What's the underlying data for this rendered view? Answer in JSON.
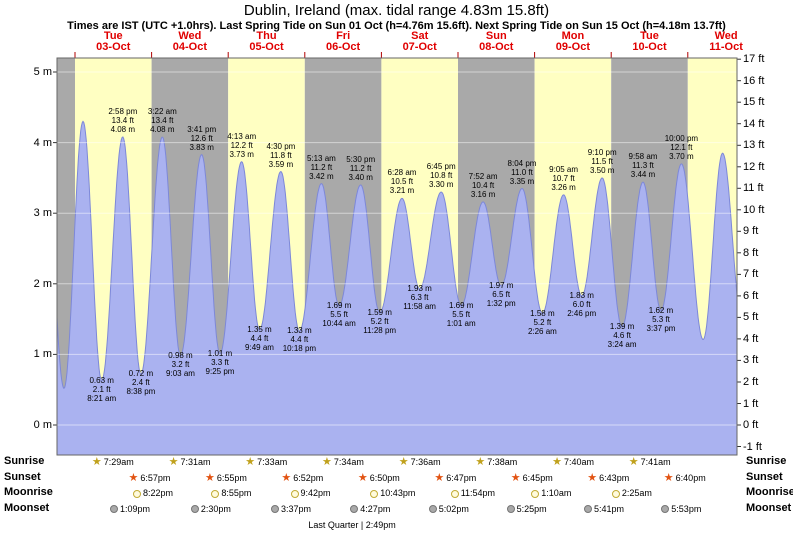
{
  "header": {
    "title": "Dublin, Ireland (max. tidal range 4.83m 15.8ft)",
    "subtitle": "Times are IST (UTC +1.0hrs). Last Spring Tide on Sun 01 Oct (h=4.76m 15.6ft). Next Spring Tide on Sun 15 Oct (h=4.18m 13.7ft)"
  },
  "chart_data": {
    "type": "area",
    "title": "Dublin, Ireland (max. tidal range 4.83m 15.8ft)",
    "x_axis": {
      "days": [
        {
          "name": "Tue",
          "date": "03-Oct"
        },
        {
          "name": "Wed",
          "date": "04-Oct"
        },
        {
          "name": "Thu",
          "date": "05-Oct"
        },
        {
          "name": "Fri",
          "date": "06-Oct"
        },
        {
          "name": "Sat",
          "date": "07-Oct"
        },
        {
          "name": "Sun",
          "date": "08-Oct"
        },
        {
          "name": "Mon",
          "date": "09-Oct"
        },
        {
          "name": "Tue",
          "date": "10-Oct"
        },
        {
          "name": "Wed",
          "date": "11-Oct"
        }
      ]
    },
    "y_axis_left": {
      "unit": "m",
      "labels": [
        "0 m",
        "1 m",
        "2 m",
        "3 m",
        "4 m",
        "5 m"
      ]
    },
    "y_axis_right": {
      "unit": "ft",
      "labels": [
        "-1 ft",
        "0 ft",
        "1 ft",
        "2 ft",
        "3 ft",
        "4 ft",
        "5 ft",
        "6 ft",
        "7 ft",
        "8 ft",
        "9 ft",
        "10 ft",
        "11 ft",
        "12 ft",
        "13 ft",
        "14 ft",
        "15 ft",
        "16 ft",
        "17 ft"
      ]
    },
    "ylim_m": [
      -0.42,
      5.2
    ],
    "grid": "horizontal-meter-lines",
    "tide_events": [
      {
        "day": -1,
        "time": "14:12",
        "type": "high",
        "height_m": 4.28,
        "annotated": false
      },
      {
        "day": -1,
        "time": "20:33",
        "type": "low",
        "height_m": 0.52,
        "annotated": false
      },
      {
        "day": 0,
        "time": "02:31",
        "type": "high",
        "height_m": 4.3,
        "annotated": false
      },
      {
        "day": 0,
        "time": "08:21",
        "type": "low",
        "height_m": 0.63,
        "height_ft": 2.1,
        "time_label": "8:21 am",
        "annotated": true
      },
      {
        "day": 0,
        "time": "14:58",
        "type": "high",
        "height_m": 4.08,
        "height_ft": 13.4,
        "time_label": "2:58 pm",
        "annotated": true
      },
      {
        "day": 0,
        "time": "20:38",
        "type": "low",
        "height_m": 0.72,
        "height_ft": 2.4,
        "time_label": "8:38 pm",
        "annotated": true
      },
      {
        "day": 1,
        "time": "03:22",
        "type": "high",
        "height_m": 4.08,
        "height_ft": 13.4,
        "time_label": "3:22 am",
        "annotated": true
      },
      {
        "day": 1,
        "time": "09:03",
        "type": "low",
        "height_m": 0.98,
        "height_ft": 3.2,
        "time_label": "9:03 am",
        "annotated": true
      },
      {
        "day": 1,
        "time": "15:41",
        "type": "high",
        "height_m": 3.83,
        "height_ft": 12.6,
        "time_label": "3:41 pm",
        "annotated": true
      },
      {
        "day": 1,
        "time": "21:25",
        "type": "low",
        "height_m": 1.01,
        "height_ft": 3.3,
        "time_label": "9:25 pm",
        "annotated": true
      },
      {
        "day": 2,
        "time": "04:13",
        "type": "high",
        "height_m": 3.73,
        "height_ft": 12.2,
        "time_label": "4:13 am",
        "annotated": true
      },
      {
        "day": 2,
        "time": "09:49",
        "type": "low",
        "height_m": 1.35,
        "height_ft": 4.4,
        "time_label": "9:49 am",
        "annotated": true
      },
      {
        "day": 2,
        "time": "16:30",
        "type": "high",
        "height_m": 3.59,
        "height_ft": 11.8,
        "time_label": "4:30 pm",
        "annotated": true
      },
      {
        "day": 2,
        "time": "22:18",
        "type": "low",
        "height_m": 1.33,
        "height_ft": 4.4,
        "time_label": "10:18 pm",
        "annotated": true
      },
      {
        "day": 3,
        "time": "05:13",
        "type": "high",
        "height_m": 3.42,
        "height_ft": 11.2,
        "time_label": "5:13 am",
        "annotated": true
      },
      {
        "day": 3,
        "time": "10:44",
        "type": "low",
        "height_m": 1.69,
        "height_ft": 5.5,
        "time_label": "10:44 am",
        "annotated": true
      },
      {
        "day": 3,
        "time": "17:30",
        "type": "high",
        "height_m": 3.4,
        "height_ft": 11.2,
        "time_label": "5:30 pm",
        "annotated": true
      },
      {
        "day": 3,
        "time": "23:28",
        "type": "low",
        "height_m": 1.59,
        "height_ft": 5.2,
        "time_label": "11:28 pm",
        "annotated": true
      },
      {
        "day": 4,
        "time": "06:28",
        "type": "high",
        "height_m": 3.21,
        "height_ft": 10.5,
        "time_label": "6:28 am",
        "annotated": true
      },
      {
        "day": 4,
        "time": "11:58",
        "type": "low",
        "height_m": 1.93,
        "height_ft": 6.3,
        "time_label": "11:58 am",
        "annotated": true
      },
      {
        "day": 4,
        "time": "18:45",
        "type": "high",
        "height_m": 3.3,
        "height_ft": 10.8,
        "time_label": "6:45 pm",
        "annotated": true
      },
      {
        "day": 5,
        "time": "01:01",
        "type": "low",
        "height_m": 1.69,
        "height_ft": 5.5,
        "time_label": "1:01 am",
        "annotated": true
      },
      {
        "day": 5,
        "time": "07:52",
        "type": "high",
        "height_m": 3.16,
        "height_ft": 10.4,
        "time_label": "7:52 am",
        "annotated": true
      },
      {
        "day": 5,
        "time": "13:32",
        "type": "low",
        "height_m": 1.97,
        "height_ft": 6.5,
        "time_label": "1:32 pm",
        "annotated": true
      },
      {
        "day": 5,
        "time": "20:04",
        "type": "high",
        "height_m": 3.35,
        "height_ft": 11.0,
        "time_label": "8:04 pm",
        "annotated": true
      },
      {
        "day": 6,
        "time": "02:26",
        "type": "low",
        "height_m": 1.58,
        "height_ft": 5.2,
        "time_label": "2:26 am",
        "annotated": true
      },
      {
        "day": 6,
        "time": "09:05",
        "type": "high",
        "height_m": 3.26,
        "height_ft": 10.7,
        "time_label": "9:05 am",
        "annotated": true
      },
      {
        "day": 6,
        "time": "14:46",
        "type": "low",
        "height_m": 1.83,
        "height_ft": 6.0,
        "time_label": "2:46 pm",
        "annotated": true
      },
      {
        "day": 6,
        "time": "21:10",
        "type": "high",
        "height_m": 3.5,
        "height_ft": 11.5,
        "time_label": "9:10 pm",
        "annotated": true
      },
      {
        "day": 7,
        "time": "03:24",
        "type": "low",
        "height_m": 1.39,
        "height_ft": 4.6,
        "time_label": "3:24 am",
        "annotated": true
      },
      {
        "day": 7,
        "time": "09:58",
        "type": "high",
        "height_m": 3.44,
        "height_ft": 11.3,
        "time_label": "9:58 am",
        "annotated": true
      },
      {
        "day": 7,
        "time": "15:37",
        "type": "low",
        "height_m": 1.62,
        "height_ft": 5.3,
        "time_label": "3:37 pm",
        "annotated": true
      },
      {
        "day": 7,
        "time": "22:00",
        "type": "high",
        "height_m": 3.7,
        "height_ft": 12.1,
        "time_label": "10:00 pm",
        "annotated": true
      },
      {
        "day": 8,
        "time": "04:49",
        "type": "low",
        "height_m": 1.21,
        "annotated": false
      },
      {
        "day": 8,
        "time": "10:54",
        "type": "high",
        "height_m": 3.85,
        "annotated": false
      },
      {
        "day": 8,
        "time": "17:10",
        "type": "low",
        "height_m": 1.4,
        "annotated": false
      }
    ],
    "sun_moon": {
      "row_labels": [
        "Sunrise",
        "Sunset",
        "Moonrise",
        "Moonset"
      ],
      "sunrise": [
        {
          "day": 0,
          "time24": "07:29",
          "label": "7:29am"
        },
        {
          "day": 1,
          "time24": "07:31",
          "label": "7:31am"
        },
        {
          "day": 2,
          "time24": "07:33",
          "label": "7:33am"
        },
        {
          "day": 3,
          "time24": "07:34",
          "label": "7:34am"
        },
        {
          "day": 4,
          "time24": "07:36",
          "label": "7:36am"
        },
        {
          "day": 5,
          "time24": "07:38",
          "label": "7:38am"
        },
        {
          "day": 6,
          "time24": "07:40",
          "label": "7:40am"
        },
        {
          "day": 7,
          "time24": "07:41",
          "label": "7:41am"
        }
      ],
      "sunset": [
        {
          "day": 0,
          "time24": "18:57",
          "label": "6:57pm"
        },
        {
          "day": 1,
          "time24": "18:55",
          "label": "6:55pm"
        },
        {
          "day": 2,
          "time24": "18:52",
          "label": "6:52pm"
        },
        {
          "day": 3,
          "time24": "18:50",
          "label": "6:50pm"
        },
        {
          "day": 4,
          "time24": "18:47",
          "label": "6:47pm"
        },
        {
          "day": 5,
          "time24": "18:45",
          "label": "6:45pm"
        },
        {
          "day": 6,
          "time24": "18:43",
          "label": "6:43pm"
        },
        {
          "day": 7,
          "time24": "18:40",
          "label": "6:40pm"
        }
      ],
      "moonrise": [
        {
          "day": 0,
          "time24": "20:22",
          "label": "8:22pm"
        },
        {
          "day": 1,
          "time24": "20:55",
          "label": "8:55pm"
        },
        {
          "day": 2,
          "time24": "21:42",
          "label": "9:42pm"
        },
        {
          "day": 3,
          "time24": "22:43",
          "label": "10:43pm"
        },
        {
          "day": 4,
          "time24": "23:54",
          "label": "11:54pm"
        },
        {
          "day": 6,
          "time24": "01:10",
          "label": "1:10am"
        },
        {
          "day": 7,
          "time24": "02:25",
          "label": "2:25am"
        }
      ],
      "moonset": [
        {
          "day": 0,
          "time24": "13:09",
          "label": "1:09pm"
        },
        {
          "day": 1,
          "time24": "14:30",
          "label": "2:30pm"
        },
        {
          "day": 2,
          "time24": "15:37",
          "label": "3:37pm"
        },
        {
          "day": 3,
          "time24": "16:27",
          "label": "4:27pm"
        },
        {
          "day": 4,
          "time24": "17:02",
          "label": "5:02pm"
        },
        {
          "day": 5,
          "time24": "17:25",
          "label": "5:25pm"
        },
        {
          "day": 6,
          "time24": "17:41",
          "label": "5:41pm"
        },
        {
          "day": 7,
          "time24": "17:53",
          "label": "5:53pm"
        }
      ],
      "moon_phase": {
        "label": "Last Quarter | 2:49pm",
        "day": 3,
        "time24": "14:49"
      }
    },
    "colors": {
      "band_yellow": "#ffffc2",
      "band_gray": "#a9a9a9",
      "tide_fill": "#aab2f0",
      "tide_stroke": "#7d88d8",
      "day_label": "#e00000",
      "gridline": "rgba(255,255,255,0.5)",
      "sunrise_star": "#c0a11c",
      "sunset_star": "#e25312"
    }
  }
}
